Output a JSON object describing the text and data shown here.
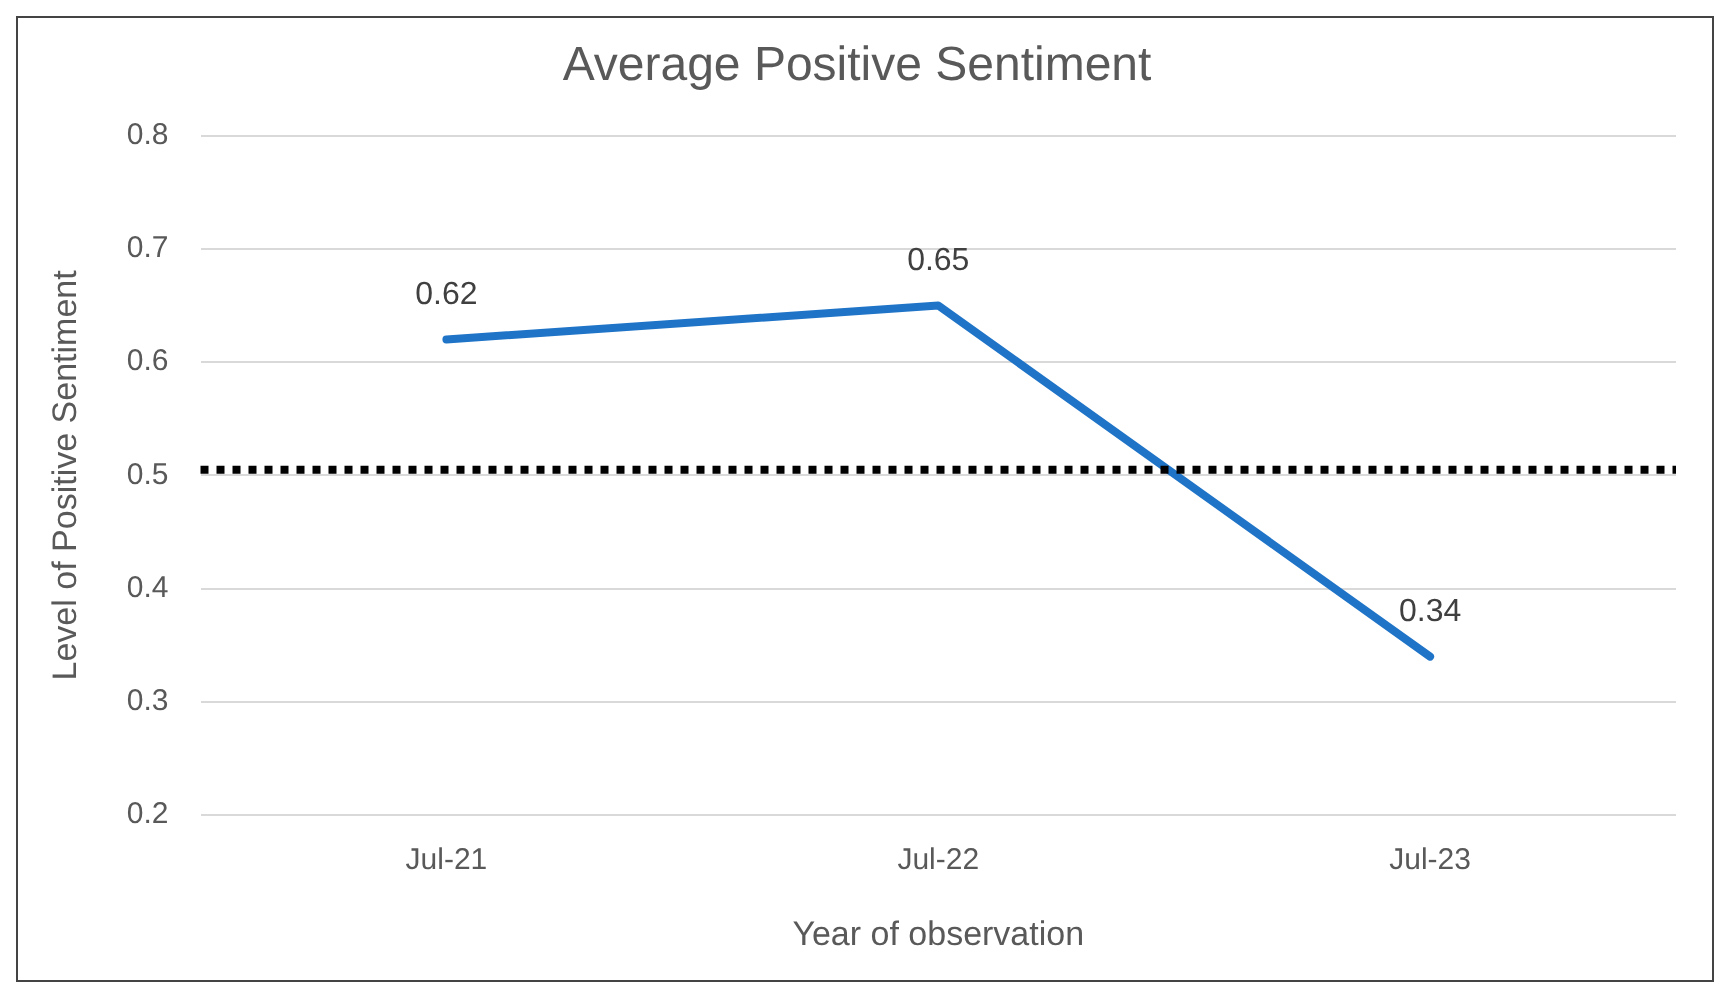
{
  "chart_data": {
    "type": "line",
    "title": "Average Positive Sentiment",
    "xlabel": "Year of observation",
    "ylabel": "Level of Positive Sentiment",
    "categories": [
      "Jul-21",
      "Jul-22",
      "Jul-23"
    ],
    "series": [
      {
        "color": "#1f74c8",
        "values": [
          0.62,
          0.65,
          0.34
        ]
      }
    ],
    "ylim": [
      0.2,
      0.8
    ],
    "yticks": [
      0.2,
      0.3,
      0.4,
      0.5,
      0.6,
      0.7,
      0.8
    ],
    "grid": "y",
    "legend": false,
    "marker": "none",
    "line_style": "solid",
    "data_labels": true,
    "ref_lines": [
      {
        "axis": "y",
        "value": 0.505,
        "color": "#000000",
        "line_style": "dotted"
      }
    ]
  }
}
